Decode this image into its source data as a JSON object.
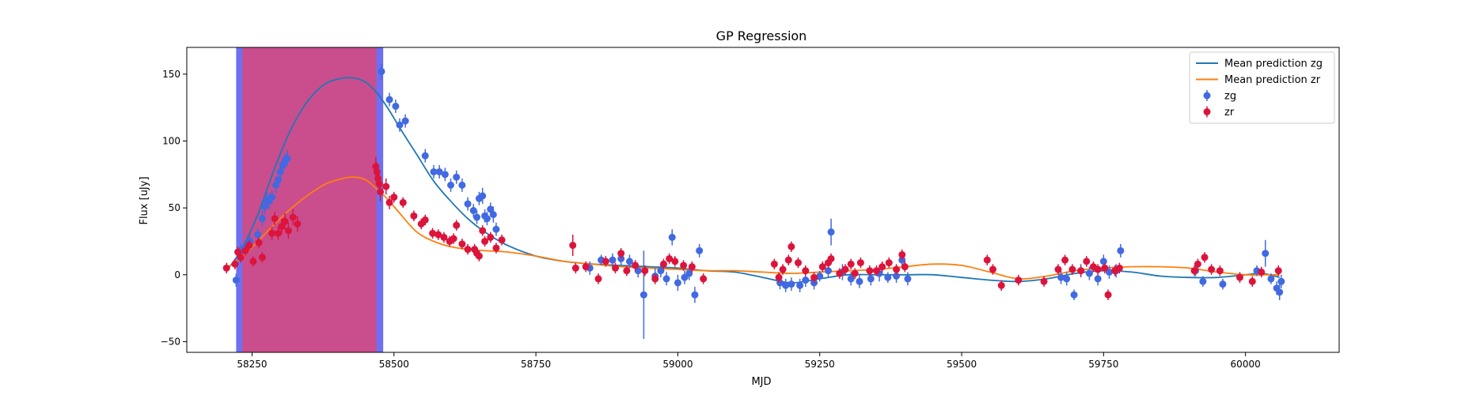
{
  "chart_data": {
    "type": "scatter",
    "title": "GP Regression",
    "xlabel": "MJD",
    "ylabel": "Flux [uJy]",
    "xlim": [
      58135,
      60165
    ],
    "ylim": [
      -58,
      170
    ],
    "xticks": [
      58250,
      58500,
      58750,
      59000,
      59250,
      59500,
      59750,
      60000
    ],
    "yticks": [
      -50,
      0,
      50,
      100,
      150
    ],
    "legend_position": "top-right",
    "legend": [
      "Mean prediction zg",
      "Mean prediction zr",
      "zg",
      "zr"
    ],
    "shaded_regions": [
      {
        "color": "#6f6ff2",
        "x_range": [
          58222,
          58481
        ]
      },
      {
        "color": "#ca4e8d",
        "x_range": [
          58233,
          58469
        ]
      }
    ],
    "lines": [
      {
        "name": "Mean prediction zg",
        "color": "#1f77b4",
        "x": [
          58205,
          58230,
          58260,
          58290,
          58320,
          58350,
          58380,
          58410,
          58430,
          58450,
          58470,
          58490,
          58510,
          58540,
          58570,
          58600,
          58630,
          58660,
          58700,
          58750,
          58800,
          58850,
          58900,
          58950,
          59000,
          59050,
          59100,
          59150,
          59200,
          59250,
          59300,
          59350,
          59400,
          59450,
          59500,
          59550,
          59600,
          59650,
          59700,
          59750,
          59800,
          59850,
          59900,
          59950,
          60000,
          60030,
          60060
        ],
        "y": [
          3,
          18,
          45,
          80,
          110,
          131,
          143,
          147,
          147,
          144,
          136,
          124,
          110,
          90,
          70,
          55,
          42,
          32,
          22,
          14,
          10,
          8,
          7,
          6,
          5,
          3,
          2,
          -2,
          -6,
          -3,
          0,
          0,
          0,
          0,
          -2,
          -4,
          -5,
          -3,
          1,
          3,
          2,
          -1,
          -2,
          -2,
          0,
          1,
          -2
        ]
      },
      {
        "name": "Mean prediction zr",
        "color": "#ff7f0e",
        "x": [
          58205,
          58230,
          58260,
          58290,
          58320,
          58350,
          58380,
          58410,
          58430,
          58450,
          58470,
          58490,
          58510,
          58540,
          58570,
          58600,
          58630,
          58660,
          58700,
          58750,
          58800,
          58850,
          58900,
          58950,
          59000,
          59050,
          59100,
          59150,
          59200,
          59250,
          59300,
          59350,
          59400,
          59450,
          59500,
          59550,
          59600,
          59650,
          59700,
          59750,
          59800,
          59850,
          59900,
          59950,
          60000,
          60030,
          60060
        ],
        "y": [
          5,
          12,
          25,
          38,
          50,
          60,
          68,
          72,
          73,
          71,
          64,
          56,
          46,
          32,
          25,
          21,
          19,
          18,
          17,
          14,
          10,
          8,
          6,
          5,
          4,
          3,
          3,
          2,
          1,
          2,
          3,
          4,
          6,
          8,
          7,
          2,
          -3,
          -1,
          3,
          5,
          6,
          6,
          5,
          2,
          0,
          0,
          0
        ]
      }
    ],
    "series": [
      {
        "name": "zg",
        "color": "#4169e1",
        "points": [
          [
            58222,
            -4,
            5
          ],
          [
            58230,
            18,
            5
          ],
          [
            58240,
            22,
            5
          ],
          [
            58246,
            25,
            5
          ],
          [
            58260,
            30,
            5
          ],
          [
            58268,
            42,
            6
          ],
          [
            58272,
            51,
            6
          ],
          [
            58276,
            56,
            6
          ],
          [
            58280,
            55,
            6
          ],
          [
            58285,
            58,
            5
          ],
          [
            58292,
            67,
            6
          ],
          [
            58296,
            71,
            6
          ],
          [
            58300,
            77,
            6
          ],
          [
            58304,
            82,
            6
          ],
          [
            58308,
            85,
            6
          ],
          [
            58312,
            87,
            6
          ],
          [
            58478,
            152,
            6
          ],
          [
            58492,
            131,
            5
          ],
          [
            58503,
            126,
            5
          ],
          [
            58510,
            112,
            5
          ],
          [
            58520,
            115,
            5
          ],
          [
            58555,
            89,
            5
          ],
          [
            58570,
            77,
            5
          ],
          [
            58580,
            77,
            5
          ],
          [
            58590,
            75,
            5
          ],
          [
            58600,
            67,
            5
          ],
          [
            58610,
            73,
            5
          ],
          [
            58620,
            67,
            5
          ],
          [
            58630,
            53,
            5
          ],
          [
            58640,
            48,
            5
          ],
          [
            58646,
            43,
            5
          ],
          [
            58650,
            57,
            5
          ],
          [
            58656,
            59,
            6
          ],
          [
            58660,
            44,
            5
          ],
          [
            58664,
            42,
            5
          ],
          [
            58670,
            49,
            5
          ],
          [
            58675,
            45,
            6
          ],
          [
            58680,
            34,
            5
          ],
          [
            58845,
            5,
            5
          ],
          [
            58865,
            11,
            4
          ],
          [
            58885,
            11,
            5
          ],
          [
            58900,
            12,
            5
          ],
          [
            58915,
            10,
            5
          ],
          [
            58930,
            3,
            5
          ],
          [
            58940,
            -15,
            33
          ],
          [
            58960,
            -1,
            6
          ],
          [
            58970,
            3,
            5
          ],
          [
            58980,
            -3,
            5
          ],
          [
            58990,
            28,
            6
          ],
          [
            59000,
            -6,
            6
          ],
          [
            59012,
            -2,
            5
          ],
          [
            59020,
            1,
            5
          ],
          [
            59030,
            -15,
            6
          ],
          [
            59038,
            18,
            5
          ],
          [
            59180,
            -6,
            5
          ],
          [
            59190,
            -8,
            5
          ],
          [
            59200,
            -7,
            5
          ],
          [
            59215,
            -8,
            5
          ],
          [
            59225,
            -4,
            5
          ],
          [
            59240,
            -6,
            5
          ],
          [
            59250,
            -1,
            4
          ],
          [
            59265,
            3,
            5
          ],
          [
            59270,
            32,
            10
          ],
          [
            59290,
            2,
            6
          ],
          [
            59305,
            -3,
            5
          ],
          [
            59320,
            -5,
            5
          ],
          [
            59340,
            -3,
            5
          ],
          [
            59355,
            1,
            6
          ],
          [
            59370,
            -2,
            4
          ],
          [
            59385,
            -1,
            5
          ],
          [
            59395,
            11,
            6
          ],
          [
            59405,
            -3,
            5
          ],
          [
            59675,
            -2,
            5
          ],
          [
            59685,
            -3,
            5
          ],
          [
            59698,
            -15,
            4
          ],
          [
            59710,
            3,
            5
          ],
          [
            59725,
            1,
            5
          ],
          [
            59740,
            -3,
            5
          ],
          [
            59750,
            10,
            5
          ],
          [
            59760,
            2,
            5
          ],
          [
            59772,
            3,
            5
          ],
          [
            59780,
            18,
            5
          ],
          [
            59912,
            3,
            4
          ],
          [
            59925,
            -5,
            4
          ],
          [
            59960,
            -7,
            4
          ],
          [
            60020,
            3,
            4
          ],
          [
            60035,
            16,
            10
          ],
          [
            60045,
            -3,
            4
          ],
          [
            60055,
            -10,
            5
          ],
          [
            60060,
            -13,
            6
          ],
          [
            60063,
            -5,
            5
          ]
        ]
      },
      {
        "name": "zr",
        "color": "#dc143c",
        "points": [
          [
            58205,
            5,
            4
          ],
          [
            58220,
            8,
            4
          ],
          [
            58225,
            17,
            4
          ],
          [
            58230,
            13,
            4
          ],
          [
            58238,
            18,
            4
          ],
          [
            58245,
            22,
            4
          ],
          [
            58252,
            10,
            4
          ],
          [
            58262,
            24,
            4
          ],
          [
            58268,
            13,
            4
          ],
          [
            58285,
            31,
            5
          ],
          [
            58290,
            42,
            5
          ],
          [
            58296,
            31,
            5
          ],
          [
            58302,
            36,
            6
          ],
          [
            58308,
            40,
            6
          ],
          [
            58314,
            33,
            6
          ],
          [
            58322,
            43,
            6
          ],
          [
            58330,
            38,
            6
          ],
          [
            58468,
            81,
            7
          ],
          [
            58470,
            77,
            7
          ],
          [
            58472,
            72,
            7
          ],
          [
            58474,
            68,
            7
          ],
          [
            58476,
            62,
            7
          ],
          [
            58486,
            66,
            6
          ],
          [
            58492,
            54,
            5
          ],
          [
            58500,
            58,
            4
          ],
          [
            58516,
            54,
            4
          ],
          [
            58535,
            44,
            4
          ],
          [
            58548,
            38,
            4
          ],
          [
            58555,
            41,
            4
          ],
          [
            58568,
            31,
            4
          ],
          [
            58578,
            30,
            4
          ],
          [
            58588,
            28,
            4
          ],
          [
            58598,
            25,
            4
          ],
          [
            58605,
            27,
            4
          ],
          [
            58610,
            37,
            4
          ],
          [
            58620,
            23,
            4
          ],
          [
            58630,
            19,
            4
          ],
          [
            58642,
            19,
            4
          ],
          [
            58646,
            16,
            4
          ],
          [
            58650,
            14,
            4
          ],
          [
            58656,
            33,
            4
          ],
          [
            58660,
            25,
            4
          ],
          [
            58670,
            28,
            4
          ],
          [
            58680,
            20,
            4
          ],
          [
            58690,
            26,
            4
          ],
          [
            58815,
            22,
            8
          ],
          [
            58820,
            5,
            4
          ],
          [
            58838,
            6,
            4
          ],
          [
            58860,
            -3,
            4
          ],
          [
            58873,
            10,
            4
          ],
          [
            58890,
            5,
            4
          ],
          [
            58900,
            16,
            4
          ],
          [
            58910,
            3,
            4
          ],
          [
            58925,
            7,
            4
          ],
          [
            58942,
            3,
            4
          ],
          [
            58960,
            -3,
            4
          ],
          [
            58975,
            8,
            4
          ],
          [
            58985,
            12,
            4
          ],
          [
            58995,
            10,
            4
          ],
          [
            59010,
            7,
            4
          ],
          [
            59025,
            6,
            4
          ],
          [
            59045,
            -3,
            4
          ],
          [
            59170,
            8,
            4
          ],
          [
            59178,
            -2,
            4
          ],
          [
            59185,
            4,
            4
          ],
          [
            59195,
            11,
            4
          ],
          [
            59200,
            21,
            4
          ],
          [
            59212,
            9,
            4
          ],
          [
            59225,
            3,
            4
          ],
          [
            59240,
            -2,
            4
          ],
          [
            59255,
            6,
            4
          ],
          [
            59265,
            9,
            4
          ],
          [
            59270,
            12,
            4
          ],
          [
            59285,
            1,
            4
          ],
          [
            59295,
            4,
            4
          ],
          [
            59305,
            8,
            4
          ],
          [
            59312,
            1,
            4
          ],
          [
            59322,
            9,
            4
          ],
          [
            59338,
            3,
            4
          ],
          [
            59350,
            3,
            4
          ],
          [
            59360,
            6,
            4
          ],
          [
            59372,
            9,
            4
          ],
          [
            59385,
            4,
            4
          ],
          [
            59395,
            15,
            4
          ],
          [
            59400,
            6,
            4
          ],
          [
            59545,
            11,
            4
          ],
          [
            59555,
            4,
            4
          ],
          [
            59570,
            -8,
            4
          ],
          [
            59600,
            -4,
            4
          ],
          [
            59645,
            -5,
            4
          ],
          [
            59670,
            4,
            4
          ],
          [
            59682,
            11,
            4
          ],
          [
            59695,
            4,
            4
          ],
          [
            59710,
            3,
            4
          ],
          [
            59720,
            10,
            4
          ],
          [
            59732,
            6,
            4
          ],
          [
            59740,
            4,
            4
          ],
          [
            59752,
            5,
            4
          ],
          [
            59758,
            -15,
            4
          ],
          [
            59770,
            3,
            4
          ],
          [
            59778,
            5,
            4
          ],
          [
            59910,
            3,
            4
          ],
          [
            59916,
            8,
            4
          ],
          [
            59928,
            13,
            4
          ],
          [
            59940,
            4,
            4
          ],
          [
            59955,
            3,
            4
          ],
          [
            59990,
            -2,
            4
          ],
          [
            60012,
            -5,
            4
          ],
          [
            60028,
            2,
            4
          ],
          [
            60058,
            3,
            4
          ]
        ]
      }
    ]
  }
}
